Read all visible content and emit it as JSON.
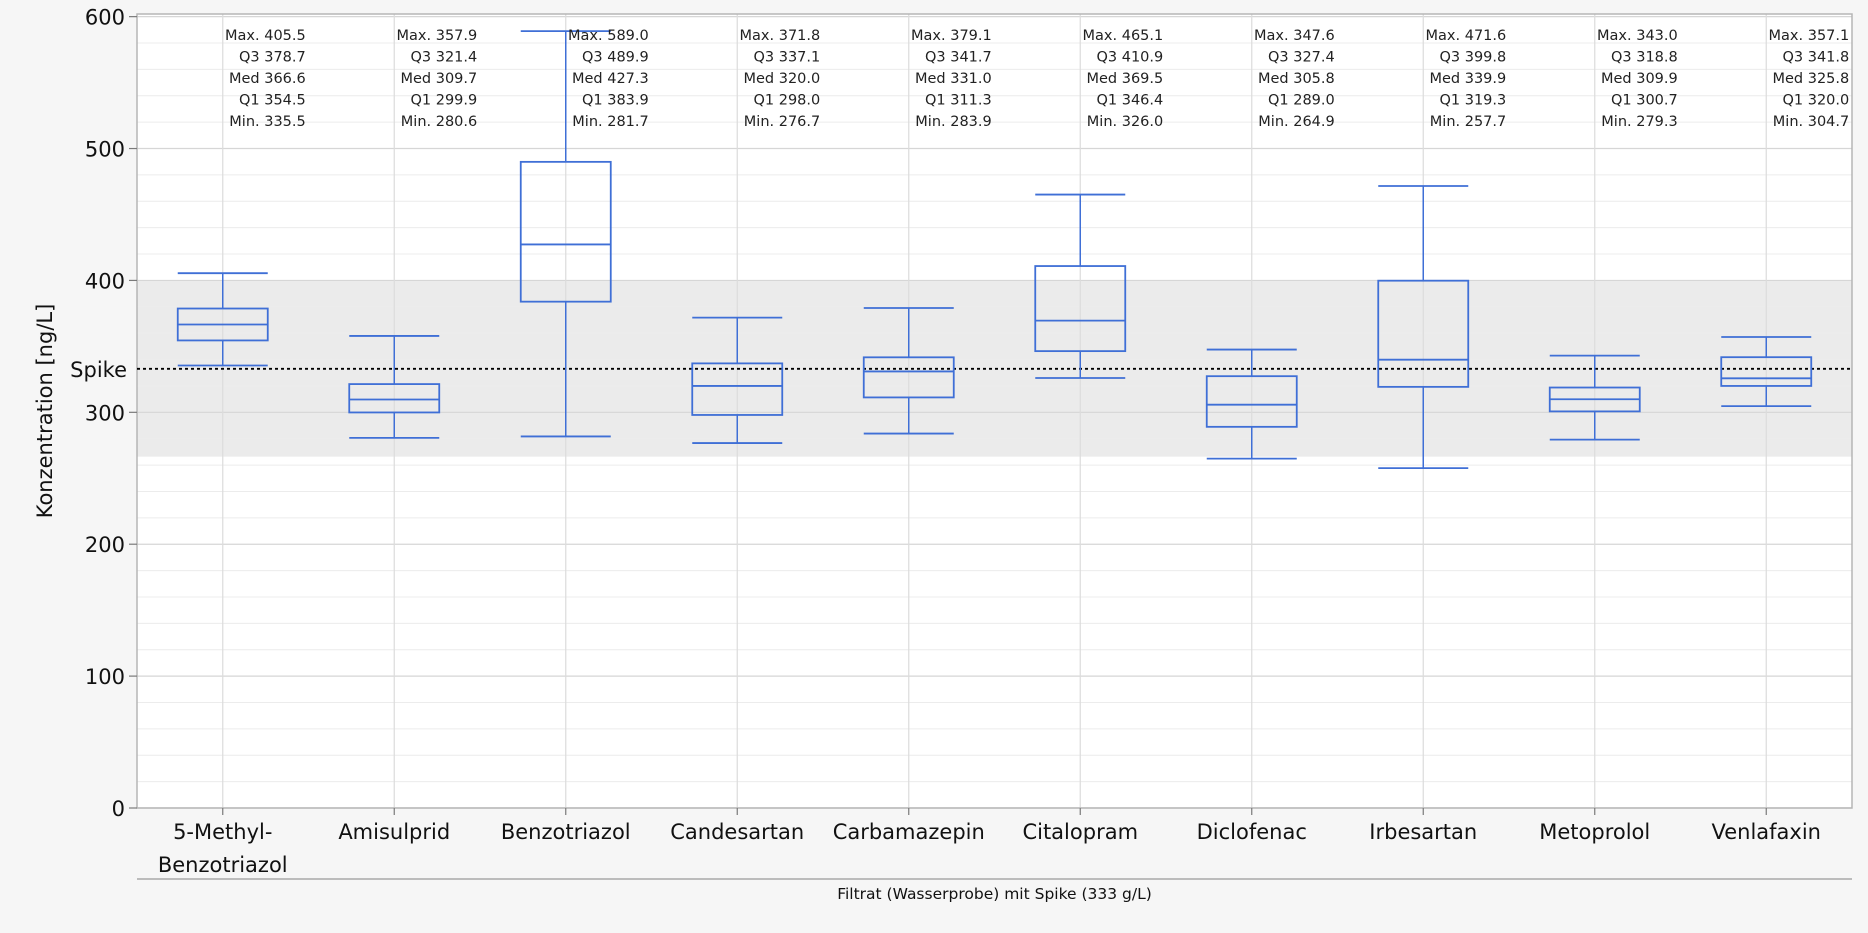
{
  "chart_data": {
    "type": "box",
    "ylabel": "Konzentration [ng/L]",
    "xlabel": "Filtrat (Wasserprobe) mit Spike (333 g/L)",
    "ylim": [
      0,
      600
    ],
    "y_ticks": [
      0,
      100,
      200,
      300,
      400,
      500,
      600
    ],
    "reference_line": {
      "label": "Spike",
      "value": 333
    },
    "shaded_band": [
      266.4,
      399.6
    ],
    "stat_labels": {
      "max": "Max.",
      "q3": "Q3",
      "median": "Med",
      "q1": "Q1",
      "min": "Min."
    },
    "categories": [
      {
        "name": [
          "5-Methyl-",
          "Benzotriazol"
        ],
        "max": 405.5,
        "q3": 378.7,
        "median": 366.6,
        "q1": 354.5,
        "min": 335.5
      },
      {
        "name": [
          "Amisulprid"
        ],
        "max": 357.9,
        "q3": 321.4,
        "median": 309.7,
        "q1": 299.9,
        "min": 280.6
      },
      {
        "name": [
          "Benzotriazol"
        ],
        "max": 589.0,
        "q3": 489.9,
        "median": 427.3,
        "q1": 383.9,
        "min": 281.7
      },
      {
        "name": [
          "Candesartan"
        ],
        "max": 371.8,
        "q3": 337.1,
        "median": 320.0,
        "q1": 298.0,
        "min": 276.7
      },
      {
        "name": [
          "Carbamazepin"
        ],
        "max": 379.1,
        "q3": 341.7,
        "median": 331.0,
        "q1": 311.3,
        "min": 283.9
      },
      {
        "name": [
          "Citalopram"
        ],
        "max": 465.1,
        "q3": 410.9,
        "median": 369.5,
        "q1": 346.4,
        "min": 326.0
      },
      {
        "name": [
          "Diclofenac"
        ],
        "max": 347.6,
        "q3": 327.4,
        "median": 305.8,
        "q1": 289.0,
        "min": 264.9
      },
      {
        "name": [
          "Irbesartan"
        ],
        "max": 471.6,
        "q3": 399.8,
        "median": 339.9,
        "q1": 319.3,
        "min": 257.7
      },
      {
        "name": [
          "Metoprolol"
        ],
        "max": 343.0,
        "q3": 318.8,
        "median": 309.9,
        "q1": 300.7,
        "min": 279.3
      },
      {
        "name": [
          "Venlafaxin"
        ],
        "max": 357.1,
        "q3": 341.8,
        "median": 325.8,
        "q1": 320.0,
        "min": 304.7
      }
    ],
    "grid": true,
    "colors": {
      "box": "#3f6fd6",
      "band": "#ebebeb",
      "grid": "#d6d6d6",
      "reference": "#000000"
    }
  }
}
